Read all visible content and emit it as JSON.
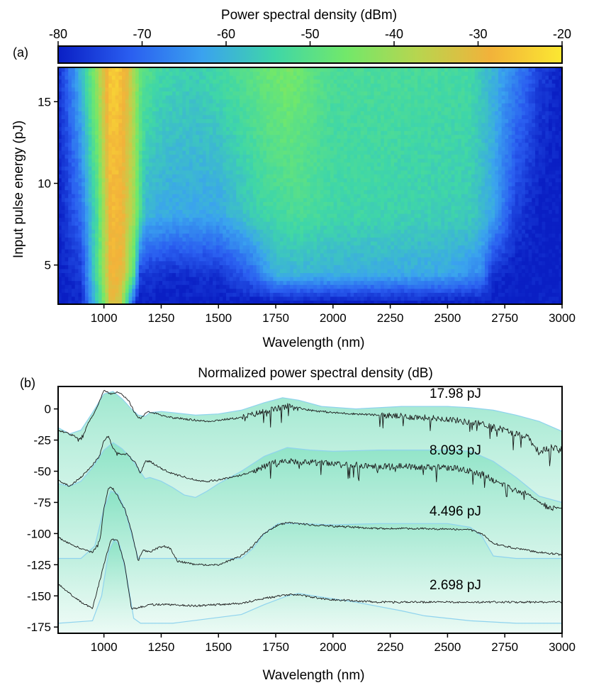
{
  "chart_data": [
    {
      "panel_label": "(a)",
      "type": "heatmap",
      "colorbar": {
        "title": "Power spectral density (dBm)",
        "range": [
          -80,
          -20
        ],
        "tick_labels": [
          "-80",
          "-70",
          "-60",
          "-50",
          "-40",
          "-30",
          "-20"
        ],
        "tick_values": [
          -80,
          -70,
          -60,
          -50,
          -40,
          -30,
          -20
        ],
        "colors": [
          "#0a1fc4",
          "#2a5ef0",
          "#3aa2ef",
          "#3fd6a8",
          "#72e86a",
          "#b8d54f",
          "#f2b23a",
          "#fbe832"
        ]
      },
      "xlabel": "Wavelength (nm)",
      "ylabel": "Input pulse energy (pJ)",
      "xlim": [
        800,
        3000
      ],
      "ylim": [
        2.6,
        17.1
      ],
      "x_ticks": [
        1000,
        1250,
        1500,
        1750,
        2000,
        2250,
        2500,
        2750,
        3000
      ],
      "x_tick_labels": [
        "1000",
        "1250",
        "1500",
        "1750",
        "2000",
        "2250",
        "2500",
        "2750",
        "3000"
      ],
      "y_ticks": [
        5,
        10,
        15
      ],
      "y_tick_labels": [
        "5",
        "10",
        "15"
      ],
      "spectra_profiles": [
        {
          "energy_pj": 17.98,
          "x": [
            800,
            880,
            950,
            1020,
            1060,
            1110,
            1160,
            1250,
            1400,
            1600,
            1800,
            2000,
            2300,
            2600,
            2700,
            2820,
            2900,
            3000
          ],
          "y": [
            -78,
            -62,
            -45,
            -25,
            -24,
            -32,
            -48,
            -53,
            -55,
            -50,
            -44,
            -52,
            -52,
            -53,
            -60,
            -67,
            -75,
            -80
          ]
        },
        {
          "energy_pj": 8.093,
          "x": [
            800,
            900,
            970,
            1030,
            1080,
            1130,
            1180,
            1300,
            1500,
            1700,
            1850,
            2000,
            2300,
            2600,
            2700,
            2800,
            2900,
            3000
          ],
          "y": [
            -80,
            -70,
            -52,
            -27,
            -29,
            -40,
            -60,
            -62,
            -62,
            -54,
            -52,
            -54,
            -55,
            -56,
            -62,
            -76,
            -80,
            -80
          ]
        },
        {
          "energy_pj": 4.496,
          "x": [
            800,
            900,
            980,
            1030,
            1080,
            1130,
            1160,
            1300,
            1500,
            1650,
            1750,
            1900,
            2200,
            2500,
            2650,
            2700,
            2800,
            3000
          ],
          "y": [
            -80,
            -76,
            -48,
            -28,
            -30,
            -50,
            -76,
            -78,
            -77,
            -70,
            -60,
            -60,
            -61,
            -62,
            -66,
            -78,
            -80,
            -80
          ]
        },
        {
          "energy_pj": 2.698,
          "x": [
            800,
            900,
            990,
            1030,
            1070,
            1110,
            1140,
            1300,
            1600,
            1800,
            2100,
            2500,
            3000
          ],
          "y": [
            -80,
            -79,
            -50,
            -30,
            -34,
            -60,
            -80,
            -80,
            -80,
            -80,
            -80,
            -80,
            -80
          ]
        }
      ]
    },
    {
      "panel_label": "(b)",
      "type": "line",
      "title": "Normalized power spectral density (dB)",
      "xlabel": "Wavelength (nm)",
      "xlim": [
        800,
        3000
      ],
      "ylim": [
        -180,
        18
      ],
      "x_ticks": [
        1000,
        1250,
        1500,
        1750,
        2000,
        2250,
        2500,
        2750,
        3000
      ],
      "x_tick_labels": [
        "1000",
        "1250",
        "1500",
        "1750",
        "2000",
        "2250",
        "2500",
        "2750",
        "3000"
      ],
      "y_ticks": [
        0,
        -25,
        -50,
        -75,
        -100,
        -125,
        -150,
        -175
      ],
      "y_tick_labels": [
        "0",
        "-25",
        "-50",
        "-75",
        "-100",
        "-125",
        "-150",
        "-175"
      ],
      "series": [
        {
          "name": "17.98 pJ",
          "measured": {
            "x": [
              800,
              850,
              900,
              930,
              960,
              990,
              1000,
              1030,
              1060,
              1090,
              1110,
              1140,
              1160,
              1180,
              1200,
              1250,
              1300,
              1350,
              1400,
              1450,
              1500,
              1600,
              1700,
              1750,
              1800,
              1850,
              1900,
              2000,
              2100,
              2200,
              2300,
              2400,
              2500,
              2600,
              2650,
              2700,
              2750,
              2800,
              2850,
              2880,
              2900,
              2920,
              2950,
              3000
            ],
            "y": [
              -17,
              -20,
              -25,
              -12,
              -2,
              10,
              15,
              12,
              14,
              10,
              6,
              -5,
              -8,
              -4,
              -2,
              -5,
              -7,
              -8,
              -9,
              -10,
              -9,
              -7,
              -2,
              0,
              2,
              1,
              -1,
              -3,
              -4,
              -5,
              -6,
              -7,
              -8,
              -11,
              -12,
              -14,
              -17,
              -20,
              -22,
              -30,
              -35,
              -33,
              -31,
              -32
            ]
          },
          "simulated": {
            "x": [
              800,
              850,
              900,
              950,
              1000,
              1040,
              1080,
              1120,
              1150,
              1180,
              1200,
              1250,
              1300,
              1400,
              1500,
              1600,
              1700,
              1780,
              1850,
              1950,
              2100,
              2300,
              2500,
              2600,
              2700,
              2800,
              2900,
              3000
            ],
            "y": [
              -15,
              -20,
              -17,
              -3,
              12,
              14,
              8,
              0,
              -5,
              -6,
              -3,
              -2,
              -3,
              -5,
              -4,
              -1,
              5,
              9,
              7,
              2,
              0,
              2,
              2,
              1,
              -1,
              -5,
              -10,
              -18
            ]
          }
        },
        {
          "name": "8.093 pJ",
          "measured": {
            "x": [
              800,
              850,
              900,
              950,
              980,
              1000,
              1020,
              1040,
              1060,
              1100,
              1140,
              1160,
              1180,
              1200,
              1250,
              1300,
              1400,
              1450,
              1500,
              1550,
              1600,
              1650,
              1700,
              1750,
              1800,
              1900,
              2000,
              2100,
              2200,
              2300,
              2400,
              2500,
              2550,
              2600,
              2650,
              2700,
              2750,
              2800,
              2850,
              2900,
              2930,
              2950,
              3000
            ],
            "y": [
              -57,
              -62,
              -55,
              -45,
              -38,
              -25,
              -22,
              -32,
              -36,
              -36,
              -44,
              -52,
              -42,
              -42,
              -48,
              -52,
              -57,
              -58,
              -57,
              -55,
              -53,
              -50,
              -46,
              -43,
              -42,
              -43,
              -44,
              -45,
              -46,
              -46,
              -47,
              -47,
              -48,
              -50,
              -52,
              -57,
              -62,
              -66,
              -68,
              -75,
              -78,
              -79,
              -80
            ]
          },
          "simulated": {
            "x": [
              800,
              850,
              900,
              950,
              1000,
              1040,
              1080,
              1120,
              1150,
              1180,
              1200,
              1250,
              1300,
              1350,
              1400,
              1450,
              1500,
              1600,
              1700,
              1800,
              1900,
              2000,
              2200,
              2500,
              2600,
              2700,
              2800,
              2900,
              3000
            ],
            "y": [
              -60,
              -62,
              -58,
              -47,
              -33,
              -27,
              -32,
              -40,
              -48,
              -56,
              -55,
              -58,
              -63,
              -69,
              -71,
              -66,
              -60,
              -50,
              -38,
              -31,
              -33,
              -34,
              -33,
              -33,
              -34,
              -42,
              -55,
              -70,
              -75
            ]
          }
        },
        {
          "name": "4.496 pJ",
          "measured": {
            "x": [
              800,
              850,
              900,
              950,
              980,
              1000,
              1020,
              1040,
              1060,
              1090,
              1120,
              1150,
              1170,
              1200,
              1230,
              1260,
              1290,
              1320,
              1400,
              1500,
              1600,
              1650,
              1700,
              1750,
              1800,
              1900,
              2000,
              2200,
              2400,
              2600,
              2650,
              2700,
              2750,
              2800,
              2900,
              3000
            ],
            "y": [
              -103,
              -108,
              -112,
              -115,
              -108,
              -80,
              -63,
              -64,
              -70,
              -80,
              -98,
              -122,
              -113,
              -115,
              -112,
              -110,
              -112,
              -122,
              -125,
              -125,
              -118,
              -110,
              -100,
              -94,
              -91,
              -93,
              -94,
              -96,
              -96,
              -97,
              -100,
              -108,
              -110,
              -112,
              -115,
              -117
            ]
          },
          "simulated": {
            "x": [
              800,
              900,
              960,
              1000,
              1030,
              1060,
              1090,
              1120,
              1150,
              1200,
              1400,
              1600,
              1650,
              1700,
              1760,
              1850,
              2000,
              2200,
              2500,
              2600,
              2650,
              2700,
              2800,
              2900,
              3000
            ],
            "y": [
              -120,
              -120,
              -110,
              -80,
              -66,
              -68,
              -80,
              -100,
              -120,
              -120,
              -120,
              -120,
              -112,
              -100,
              -92,
              -92,
              -93,
              -92,
              -92,
              -95,
              -102,
              -118,
              -120,
              -120,
              -120
            ]
          }
        },
        {
          "name": "2.698 pJ",
          "measured": {
            "x": [
              800,
              850,
              900,
              950,
              1000,
              1030,
              1060,
              1090,
              1120,
              1140,
              1200,
              1300,
              1400,
              1500,
              1600,
              1700,
              1800,
              1850,
              1900,
              2000,
              2100,
              2200,
              2400,
              2600,
              2800,
              3000
            ],
            "y": [
              -140,
              -148,
              -155,
              -160,
              -125,
              -105,
              -105,
              -125,
              -160,
              -160,
              -157,
              -157,
              -158,
              -157,
              -156,
              -152,
              -149,
              -149,
              -151,
              -153,
              -154,
              -155,
              -155,
              -155,
              -155,
              -155
            ]
          },
          "simulated": {
            "x": [
              800,
              950,
              990,
              1020,
              1045,
              1070,
              1100,
              1130,
              1160,
              1300,
              1600,
              1700,
              1800,
              1850,
              1950,
              2100,
              2300,
              2400,
              2600,
              2800,
              3000
            ],
            "y": [
              -172,
              -170,
              -150,
              -115,
              -105,
              -110,
              -135,
              -168,
              -172,
              -172,
              -165,
              -157,
              -150,
              -148,
              -151,
              -155,
              -162,
              -166,
              -170,
              -172,
              -172
            ]
          }
        }
      ]
    }
  ]
}
